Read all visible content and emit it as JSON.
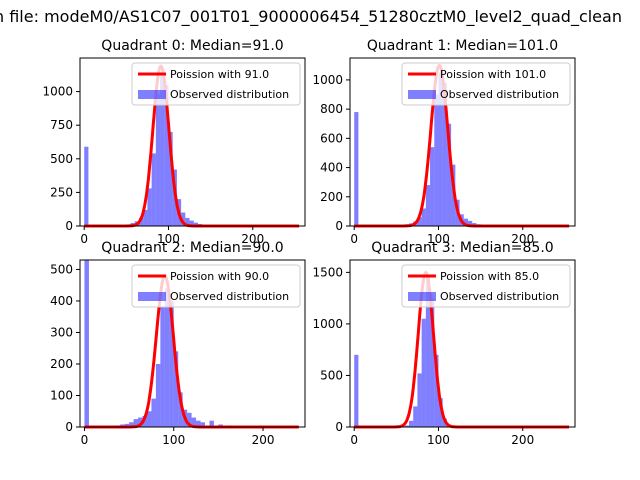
{
  "figure": {
    "suptitle": "n file: modeM0/AS1C07_001T01_9000006454_51280cztM0_level2_quad_clean"
  },
  "colors": {
    "hist": "#0000ff",
    "poisson": "#ff0000",
    "frame": "#000000"
  },
  "chart_data": [
    {
      "type": "bar",
      "title": "Quadrant 0: Median=91.0",
      "xlim": [
        -5,
        262
      ],
      "ylim": [
        0,
        1250
      ],
      "xticks": [
        0,
        100,
        200
      ],
      "yticks": [
        0,
        250,
        500,
        750,
        1000
      ],
      "legend": [
        "Poission with 91.0",
        "Observed distribution"
      ],
      "legend_position": "top-right",
      "bin_width": 5,
      "hist": [
        [
          0,
          590
        ],
        [
          35,
          3
        ],
        [
          40,
          5
        ],
        [
          45,
          8
        ],
        [
          50,
          12
        ],
        [
          55,
          22
        ],
        [
          60,
          35
        ],
        [
          65,
          60
        ],
        [
          70,
          120
        ],
        [
          75,
          280
        ],
        [
          80,
          540
        ],
        [
          85,
          980
        ],
        [
          90,
          1120
        ],
        [
          95,
          1050
        ],
        [
          100,
          700
        ],
        [
          105,
          420
        ],
        [
          110,
          200
        ],
        [
          115,
          100
        ],
        [
          120,
          60
        ],
        [
          125,
          40
        ],
        [
          130,
          25
        ],
        [
          135,
          15
        ],
        [
          140,
          8
        ],
        [
          150,
          4
        ],
        [
          160,
          3
        ]
      ],
      "poisson_mean": 91.0,
      "poisson_peak": 1190,
      "poisson_sigma": 9.5,
      "poisson_range": [
        0,
        255
      ]
    },
    {
      "type": "bar",
      "title": "Quadrant 1: Median=101.0",
      "xlim": [
        -5,
        262
      ],
      "ylim": [
        0,
        1150
      ],
      "xticks": [
        0,
        100,
        200
      ],
      "yticks": [
        0,
        200,
        400,
        600,
        800,
        1000
      ],
      "legend": [
        "Poission with 101.0",
        "Observed distribution"
      ],
      "legend_position": "top-right",
      "bin_width": 5,
      "hist": [
        [
          0,
          780
        ],
        [
          45,
          3
        ],
        [
          50,
          5
        ],
        [
          55,
          8
        ],
        [
          60,
          12
        ],
        [
          65,
          18
        ],
        [
          70,
          30
        ],
        [
          75,
          60
        ],
        [
          80,
          120
        ],
        [
          85,
          280
        ],
        [
          90,
          540
        ],
        [
          95,
          900
        ],
        [
          100,
          1050
        ],
        [
          105,
          980
        ],
        [
          110,
          700
        ],
        [
          115,
          420
        ],
        [
          120,
          180
        ],
        [
          125,
          80
        ],
        [
          130,
          50
        ],
        [
          135,
          35
        ],
        [
          140,
          20
        ],
        [
          145,
          12
        ],
        [
          150,
          8
        ],
        [
          160,
          4
        ],
        [
          170,
          2
        ]
      ],
      "poisson_mean": 101.0,
      "poisson_peak": 1100,
      "poisson_sigma": 10.0,
      "poisson_range": [
        0,
        255
      ]
    },
    {
      "type": "bar",
      "title": "Quadrant 2: Median=90.0",
      "xlim": [
        -5,
        247
      ],
      "ylim": [
        0,
        530
      ],
      "xticks": [
        0,
        100,
        200
      ],
      "yticks": [
        0,
        100,
        200,
        300,
        400,
        500
      ],
      "legend": [
        "Poission with 90.0",
        "Observed distribution"
      ],
      "legend_position": "top-right",
      "bin_width": 5,
      "hist": [
        [
          0,
          530
        ],
        [
          30,
          3
        ],
        [
          35,
          5
        ],
        [
          40,
          8
        ],
        [
          45,
          10
        ],
        [
          50,
          15
        ],
        [
          55,
          25
        ],
        [
          60,
          30
        ],
        [
          65,
          35
        ],
        [
          70,
          50
        ],
        [
          75,
          90
        ],
        [
          80,
          200
        ],
        [
          85,
          380
        ],
        [
          90,
          440
        ],
        [
          95,
          400
        ],
        [
          100,
          240
        ],
        [
          105,
          110
        ],
        [
          110,
          55
        ],
        [
          115,
          45
        ],
        [
          120,
          30
        ],
        [
          125,
          20
        ],
        [
          130,
          15
        ],
        [
          140,
          20
        ],
        [
          150,
          8
        ],
        [
          160,
          5
        ],
        [
          170,
          4
        ],
        [
          180,
          3
        ],
        [
          190,
          2
        ]
      ],
      "poisson_mean": 90.0,
      "poisson_peak": 480,
      "poisson_sigma": 9.5,
      "poisson_range": [
        0,
        240
      ]
    },
    {
      "type": "bar",
      "title": "Quadrant 3: Median=85.0",
      "xlim": [
        -5,
        262
      ],
      "ylim": [
        0,
        1620
      ],
      "xticks": [
        0,
        100,
        200
      ],
      "yticks": [
        0,
        500,
        1000,
        1500
      ],
      "legend": [
        "Poission with 85.0",
        "Observed distribution"
      ],
      "legend_position": "top-right",
      "bin_width": 5,
      "hist": [
        [
          0,
          700
        ],
        [
          55,
          5
        ],
        [
          60,
          15
        ],
        [
          65,
          60
        ],
        [
          70,
          200
        ],
        [
          75,
          520
        ],
        [
          80,
          1050
        ],
        [
          85,
          1450
        ],
        [
          90,
          1250
        ],
        [
          95,
          700
        ],
        [
          100,
          280
        ],
        [
          105,
          80
        ],
        [
          110,
          20
        ],
        [
          115,
          8
        ]
      ],
      "poisson_mean": 85.0,
      "poisson_peak": 1500,
      "poisson_sigma": 9.0,
      "poisson_range": [
        0,
        255
      ]
    }
  ]
}
